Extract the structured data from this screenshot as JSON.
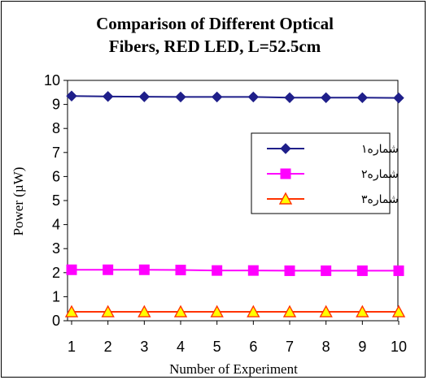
{
  "chart_data": {
    "type": "line",
    "title_lines": [
      "Comparison of Different Optical",
      "Fibers, RED LED, L=52.5cm"
    ],
    "xlabel": "Number of Experiment",
    "ylabel": "Power (µW)",
    "x": [
      1,
      2,
      3,
      4,
      5,
      6,
      7,
      8,
      9,
      10
    ],
    "xlim": [
      1,
      10
    ],
    "ylim": [
      0,
      10
    ],
    "y_ticks": [
      0,
      1,
      2,
      3,
      4,
      5,
      6,
      7,
      8,
      9,
      10
    ],
    "grid": false,
    "legend_position": "right",
    "series": [
      {
        "name": "شماره۱",
        "color": "#1f1f8a",
        "marker": "diamond",
        "values": [
          9.35,
          9.33,
          9.32,
          9.31,
          9.31,
          9.31,
          9.28,
          9.28,
          9.28,
          9.27
        ]
      },
      {
        "name": "شماره۲",
        "color": "#ff00ff",
        "marker": "square",
        "values": [
          2.12,
          2.12,
          2.12,
          2.11,
          2.09,
          2.09,
          2.08,
          2.08,
          2.08,
          2.08
        ]
      },
      {
        "name": "شماره۳",
        "color": "#ff3300",
        "marker": "triangle",
        "marker_fill": "#ffff00",
        "values": [
          0.37,
          0.37,
          0.37,
          0.37,
          0.37,
          0.37,
          0.37,
          0.37,
          0.37,
          0.37
        ]
      }
    ]
  }
}
